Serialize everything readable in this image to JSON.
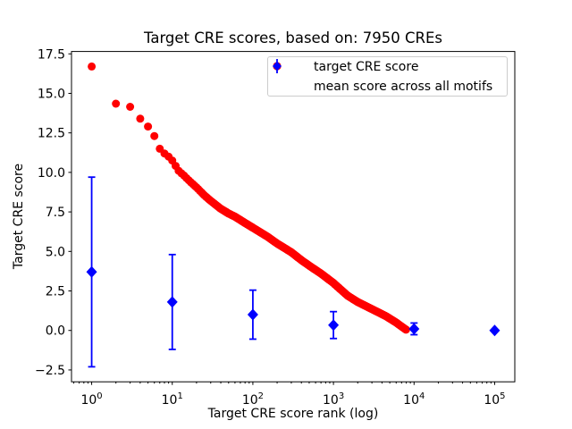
{
  "figure": {
    "title": "Target CRE scores, based on: 7950 CREs",
    "xlabel": "Target CRE score rank (log)",
    "ylabel": "Target CRE score",
    "background_color": "#ffffff",
    "axis_color": "#000000"
  },
  "legend": {
    "position": "upper right",
    "border_color": "#cccccc",
    "items": [
      {
        "label": "target CRE score",
        "marker": "circle",
        "color": "#ff0000"
      },
      {
        "label": "mean score across all motifs",
        "marker": "diamond-with-errorbar",
        "color": "#0000ff"
      }
    ]
  },
  "chart_data": {
    "type": "scatter",
    "title": "Target CRE scores, based on: 7950 CREs",
    "xlabel": "Target CRE score rank (log)",
    "ylabel": "Target CRE score",
    "x_scale": "log",
    "grid": false,
    "xlim": [
      0.562,
      177827
    ],
    "ylim": [
      -3.25,
      17.65
    ],
    "x_tick_exponents": [
      0,
      1,
      2,
      3,
      4,
      5
    ],
    "y_ticks": [
      17.5,
      15.0,
      12.5,
      10.0,
      7.5,
      5.0,
      2.5,
      0.0,
      -2.5
    ],
    "series": [
      {
        "name": "target CRE score",
        "marker": "circle",
        "color": "#ff0000",
        "n_points": 7950,
        "rank_score_anchors": [
          [
            1,
            16.7
          ],
          [
            2,
            14.35
          ],
          [
            3,
            14.15
          ],
          [
            4,
            13.4
          ],
          [
            5,
            12.9
          ],
          [
            6,
            12.3
          ],
          [
            7,
            11.5
          ],
          [
            8,
            11.2
          ],
          [
            9,
            11.0
          ],
          [
            10,
            10.75
          ],
          [
            12,
            10.1
          ],
          [
            14,
            9.8
          ],
          [
            16,
            9.5
          ],
          [
            20,
            9.05
          ],
          [
            25,
            8.55
          ],
          [
            30,
            8.2
          ],
          [
            40,
            7.7
          ],
          [
            50,
            7.4
          ],
          [
            60,
            7.2
          ],
          [
            80,
            6.8
          ],
          [
            100,
            6.5
          ],
          [
            150,
            5.95
          ],
          [
            200,
            5.5
          ],
          [
            300,
            4.95
          ],
          [
            400,
            4.45
          ],
          [
            500,
            4.1
          ],
          [
            700,
            3.6
          ],
          [
            1000,
            3.0
          ],
          [
            1500,
            2.2
          ],
          [
            2000,
            1.8
          ],
          [
            3000,
            1.35
          ],
          [
            4500,
            0.9
          ],
          [
            6000,
            0.5
          ],
          [
            7000,
            0.25
          ],
          [
            7950,
            0.05
          ]
        ]
      },
      {
        "name": "mean score across all motifs",
        "marker": "diamond",
        "color": "#0000ff",
        "x": [
          1,
          10,
          100,
          1000,
          10000,
          100000
        ],
        "y": [
          3.7,
          1.8,
          1.0,
          0.34,
          0.1,
          0.0
        ],
        "yerr": [
          6.0,
          3.0,
          1.55,
          0.85,
          0.37,
          0.05
        ]
      }
    ]
  }
}
